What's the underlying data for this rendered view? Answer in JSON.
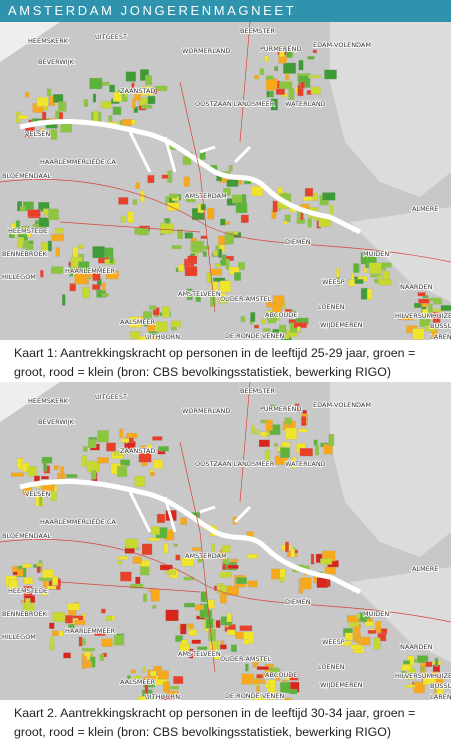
{
  "header": {
    "title": "AMSTERDAM JONGERENMAGNEET"
  },
  "maps": [
    {
      "labels": [
        "HEEMSKERK",
        "UITGEEST",
        "BEEMSTER",
        "PURMEREND",
        "EDAM-VOLENDAM",
        "BEVERWIJK",
        "WORMERLAND",
        "ZAANSTAD",
        "OOSTZAAN LANDSMEER",
        "WATERLAND",
        "VELSEN",
        "HAARLEMMERLIEDE CA",
        "BLOEMENDAAL",
        "AMSTERDAM",
        "ALMERE",
        "HEEMSTEDE",
        "DIEMEN",
        "MUIDEN",
        "BENNEBROEK",
        "HAARLEMMEER",
        "HILLEGOM",
        "WEESP",
        "AMSTELVEEN",
        "OUDER-AMSTEL",
        "NAARDEN",
        "LOENEN",
        "ABCOUDE",
        "HILVERSUM",
        "HUIZEN",
        "BUSSUM",
        "WIJDEMEREN",
        "AALSMEER",
        "UITHOORN",
        "DE RONDE VENEN",
        "LAREN"
      ],
      "caption": "Kaart 1: Aantrekkingskracht op personen in de leeftijd 25-29 jaar, groen = groot, rood = klein (bron: CBS bevolkingsstatistiek, bewerking RIGO)"
    },
    {
      "labels": [
        "HEEMSKERK",
        "UITGEEST",
        "BEEMSTER",
        "PURMEREND",
        "EDAM-VOLENDAM",
        "BEVERWIJK",
        "WORMERLAND",
        "ZAANSTAD",
        "OOSTZAAN LANDSMEER",
        "WATERLAND",
        "VELSEN",
        "HAARLEMMERLIEDE CA",
        "BLOEMENDAAL",
        "AMSTERDAM",
        "ALMERE",
        "HEEMSTEDE",
        "DIEMEN",
        "MUIDEN",
        "BENNEBROEK",
        "HAARLEMMEER",
        "HILLEGOM",
        "WEESP",
        "AMSTELVEEN",
        "OUDER-AMSTEL",
        "NAARDEN",
        "LOENEN",
        "ABCOUDE",
        "HILVERSUM",
        "HUIZEN",
        "BUSSUM",
        "WIJDEMEREN",
        "AALSMEER",
        "UITHOORN",
        "DE RONDE VENEN",
        "LAREN"
      ],
      "caption": "Kaart 2. Aantrekkingskracht op personen in de leeftijd 30-34  jaar, groen = groot, rood = klein (bron: CBS bevolkingsstatistiek, bewerking RIGO)"
    }
  ]
}
